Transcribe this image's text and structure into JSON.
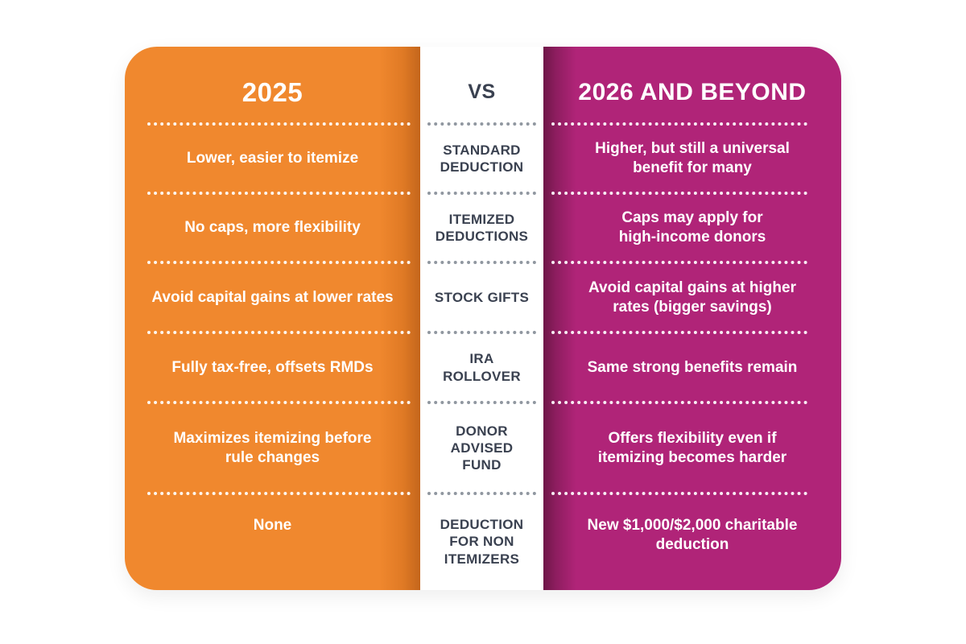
{
  "table": {
    "left_header": "2025",
    "vs_label": "VS",
    "right_header": "2026 AND BEYOND",
    "colors": {
      "left_panel": "#F0882E",
      "left_panel_edge": "#C4661C",
      "right_panel": "#B02478",
      "right_panel_edge": "#6E1647",
      "center_text": "#3A4150",
      "center_dots": "#9097A0",
      "panel_text": "#FFFFFF",
      "background": "#FFFFFF"
    },
    "rows": [
      {
        "category": "STANDARD\nDEDUCTION",
        "y2025": "Lower, easier to itemize",
        "y2026": "Higher, but still a universal\nbenefit for many"
      },
      {
        "category": "ITEMIZED\nDEDUCTIONS",
        "y2025": "No caps, more flexibility",
        "y2026": "Caps may apply for\nhigh-income donors"
      },
      {
        "category": "STOCK GIFTS",
        "y2025": "Avoid capital gains at lower rates",
        "y2026": "Avoid capital gains at higher\nrates (bigger savings)"
      },
      {
        "category": "IRA\nROLLOVER",
        "y2025": "Fully tax-free, offsets RMDs",
        "y2026": "Same strong benefits remain"
      },
      {
        "category": "DONOR\nADVISED\nFUND",
        "y2025": "Maximizes itemizing before\nrule changes",
        "y2026": "Offers flexibility even if\nitemizing becomes harder"
      },
      {
        "category": "DEDUCTION\nFOR NON\nITEMIZERS",
        "y2025": "None",
        "y2026": "New $1,000/$2,000 charitable\ndeduction"
      }
    ]
  }
}
